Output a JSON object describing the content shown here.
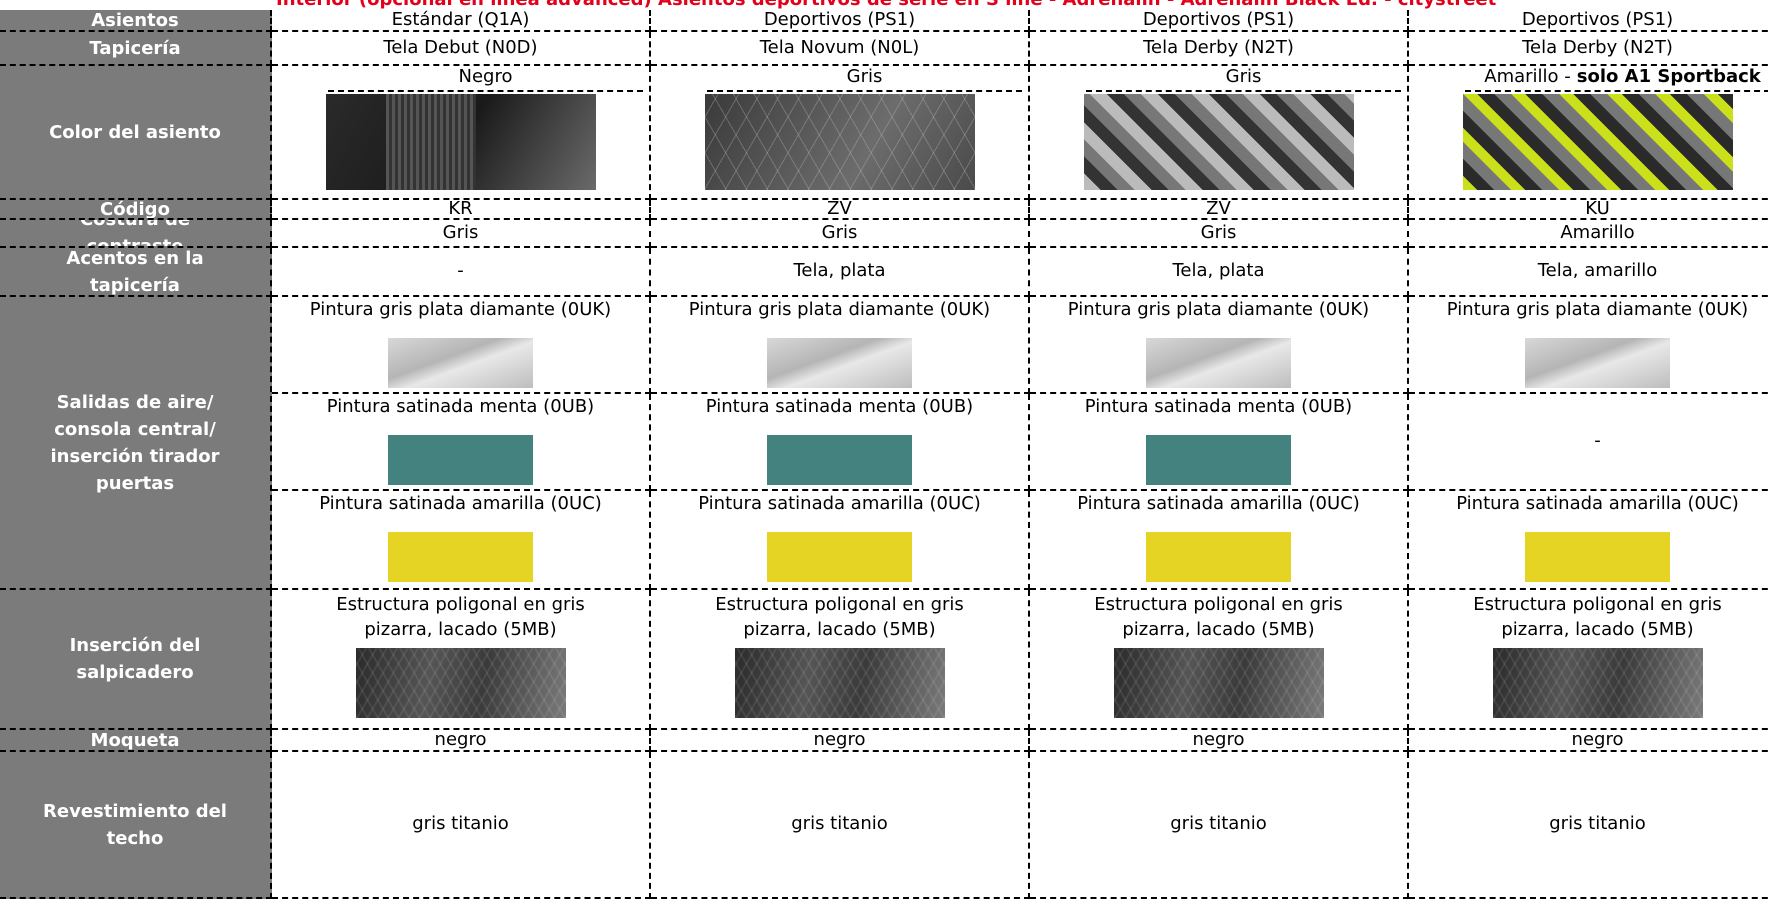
{
  "title": "Interior (opcional en línea advanced) Asientos deportivos de serie en S line - Adrenalin - Adrenalin Black Ed. - citystreet",
  "rows": [
    {
      "label": "Asientos",
      "cells": [
        "Estándar (Q1A)",
        "Deportivos (PS1)",
        "Deportivos (PS1)",
        "Deportivos (PS1)"
      ]
    },
    {
      "label": "Tapicería",
      "cells": [
        "Tela Debut (N0D)",
        "Tela Novum (N0L)",
        "Tela Derby (N2T)",
        "Tela Derby (N2T)"
      ]
    },
    {
      "label": "Color del asiento",
      "cells": [
        {
          "name": "Negro"
        },
        {
          "name": "Gris"
        },
        {
          "name": "Gris"
        },
        {
          "name": "Amarillo -",
          "note": "solo A1 Sportback"
        }
      ]
    },
    {
      "label": "Código",
      "cells": [
        "KR",
        "ZV",
        "ZV",
        "KU"
      ]
    },
    {
      "label": "Costura de contraste",
      "cells": [
        "Gris",
        "Gris",
        "Gris",
        "Amarillo"
      ]
    },
    {
      "label": "Acentos en la tapicería",
      "cells": [
        "-",
        "Tela, plata",
        "Tela, plata",
        "Tela, amarillo"
      ]
    },
    {
      "label": "Salidas de aire/ consola central/ inserción tirador puertas",
      "options": [
        [
          "Pintura gris plata diamante (0UK)",
          "Pintura gris plata diamante (0UK)",
          "Pintura gris plata diamante (0UK)",
          "Pintura gris plata diamante (0UK)"
        ],
        [
          "Pintura satinada menta (0UB)",
          "Pintura satinada menta (0UB)",
          "Pintura satinada menta (0UB)",
          "-"
        ],
        [
          "Pintura satinada amarilla (0UC)",
          "Pintura satinada amarilla (0UC)",
          "Pintura satinada amarilla (0UC)",
          "Pintura satinada amarilla (0UC)"
        ]
      ]
    },
    {
      "label": "Inserción del salpicadero",
      "cells": [
        "Estructura poligonal en gris pizarra, lacado (5MB)",
        "Estructura poligonal en gris pizarra, lacado (5MB)",
        "Estructura poligonal en gris pizarra, lacado (5MB)",
        "Estructura poligonal en gris pizarra, lacado (5MB)"
      ]
    },
    {
      "label": "Moqueta",
      "cells": [
        "negro",
        "negro",
        "negro",
        "negro"
      ]
    },
    {
      "label": "Revestimiento del techo",
      "cells": [
        "gris titanio",
        "gris titanio",
        "gris titanio",
        "gris titanio"
      ]
    }
  ]
}
